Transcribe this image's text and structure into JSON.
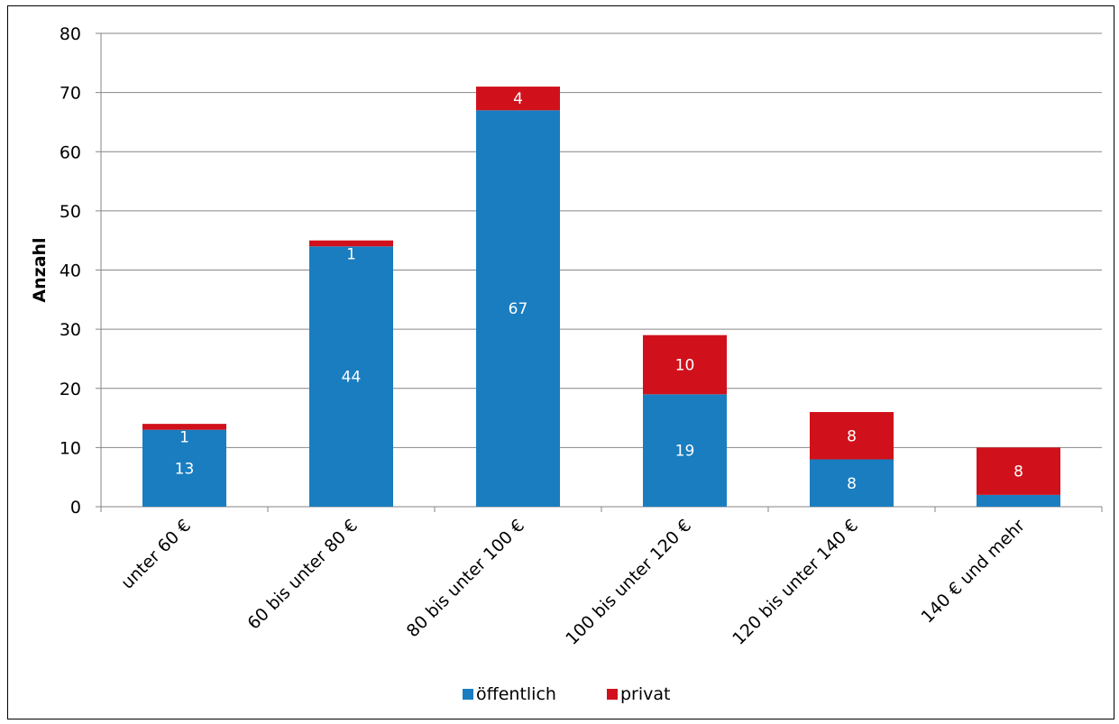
{
  "chart_data": {
    "type": "bar",
    "stacked": true,
    "categories": [
      "unter 60 €",
      "60 bis unter 80 €",
      "80 bis unter 100 €",
      "100 bis unter 120 €",
      "120 bis unter 140 €",
      "140 € und mehr"
    ],
    "series": [
      {
        "name": "öffentlich",
        "values": [
          13,
          44,
          67,
          19,
          8,
          2
        ],
        "color": "#1a7dc0"
      },
      {
        "name": "privat",
        "values": [
          1,
          1,
          4,
          10,
          8,
          8
        ],
        "color": "#d0111b"
      }
    ],
    "title": "",
    "xlabel": "",
    "ylabel": "Anzahl",
    "ylim": [
      0,
      80
    ],
    "yticks": [
      0,
      10,
      20,
      30,
      40,
      50,
      60,
      70,
      80
    ],
    "grid": true,
    "legend_position": "bottom"
  }
}
